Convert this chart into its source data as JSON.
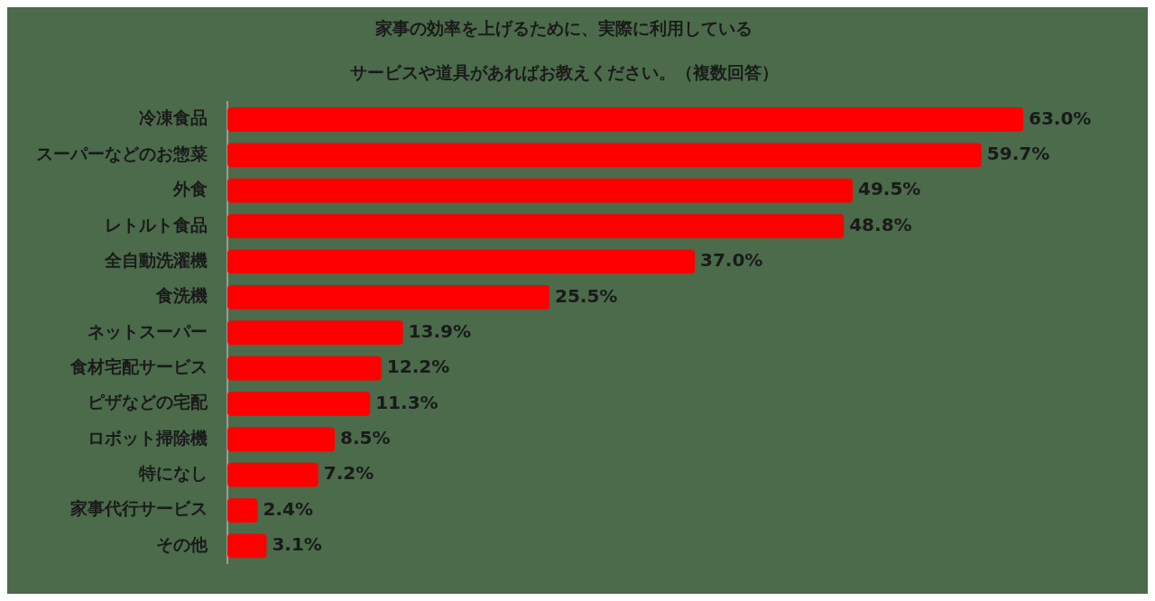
{
  "chart_data": {
    "type": "bar",
    "orientation": "horizontal",
    "title": "家事の効率を上げるために、実際に利用しているサービスや道具があればお教えください。（複数回答）",
    "categories": [
      "冷凍食品",
      "スーパーなどのお惣菜",
      "外食",
      "レトルト食品",
      "全自動洗濯機",
      "食洗機",
      "ネットスーパー",
      "食材宅配サービス",
      "ピザなどの宅配",
      "ロボット掃除機",
      "特になし",
      "家事代行サービス",
      "その他"
    ],
    "values": [
      63.0,
      59.7,
      49.5,
      48.8,
      37.0,
      25.5,
      13.9,
      12.2,
      11.3,
      8.5,
      7.2,
      2.4,
      3.1
    ],
    "value_labels": [
      "63.0%",
      "59.7%",
      "49.5%",
      "48.8%",
      "37.0%",
      "25.5%",
      "13.9%",
      "12.2%",
      "11.3%",
      "8.5%",
      "7.2%",
      "2.4%",
      "3.1%"
    ],
    "color": "#ff0000",
    "legend": false,
    "tick_labels": "y"
  }
}
